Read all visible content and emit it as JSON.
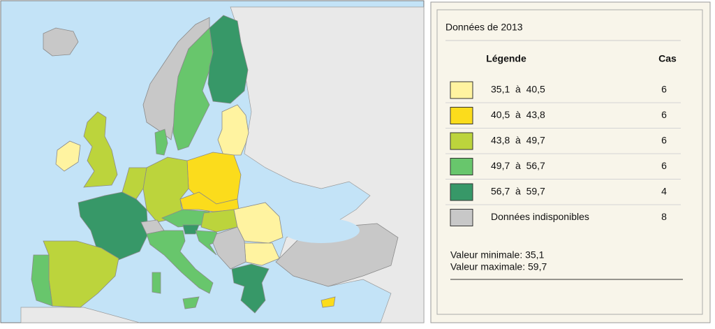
{
  "legend": {
    "title": "Données de 2013",
    "header_label": "Légende",
    "header_count": "Cas",
    "rows": [
      {
        "label": "35,1  à  40,5",
        "count": 6,
        "color": "#fff3a0"
      },
      {
        "label": "40,5  à  43,8",
        "count": 6,
        "color": "#fbdc1c"
      },
      {
        "label": "43,8  à  49,7",
        "count": 6,
        "color": "#bcd43c"
      },
      {
        "label": "49,7  à  56,7",
        "count": 6,
        "color": "#68c66c"
      },
      {
        "label": "56,7  à  59,7",
        "count": 4,
        "color": "#379868"
      },
      {
        "label": "Données indisponibles",
        "count": 8,
        "color": "#c8c8c8"
      }
    ],
    "min_text": "Valeur minimale: 35,1",
    "max_text": "Valeur maximale: 59,7"
  }
}
